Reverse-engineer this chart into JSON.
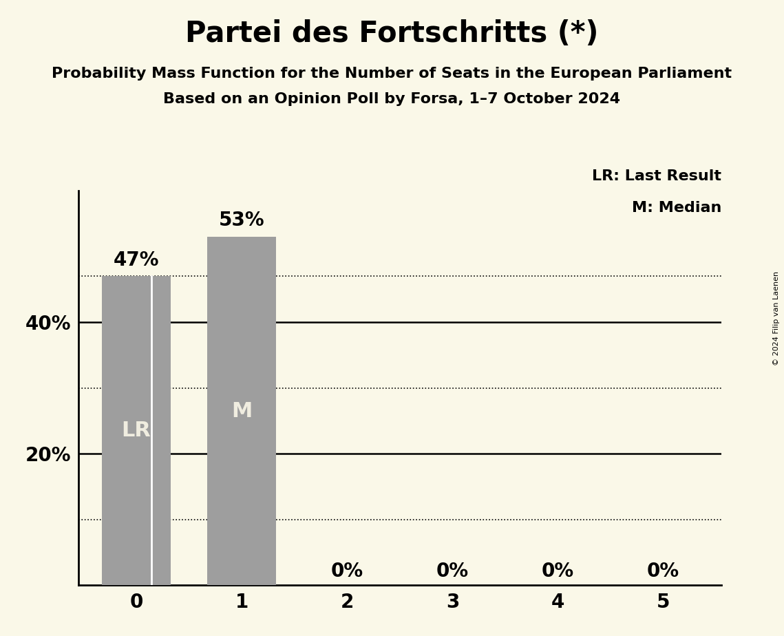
{
  "title": "Partei des Fortschritts (*)",
  "subtitle1": "Probability Mass Function for the Number of Seats in the European Parliament",
  "subtitle2": "Based on an Opinion Poll by Forsa, 1–7 October 2024",
  "copyright": "© 2024 Filip van Laenen",
  "categories": [
    0,
    1,
    2,
    3,
    4,
    5
  ],
  "values": [
    0.47,
    0.53,
    0.0,
    0.0,
    0.0,
    0.0
  ],
  "bar_color": "#9e9e9e",
  "bar_labels": [
    "LR",
    "M",
    "",
    "",
    "",
    ""
  ],
  "bar_label_color": "#f0ede0",
  "value_labels": [
    "47%",
    "53%",
    "0%",
    "0%",
    "0%",
    "0%"
  ],
  "lr_bar_index": 0,
  "median_bar_index": 1,
  "dotted_line_y": 0.47,
  "background_color": "#faf8e8",
  "ylim": [
    0,
    0.6
  ],
  "solid_yticks": [
    0.2,
    0.4
  ],
  "dotted_yticks": [
    0.1,
    0.3,
    0.47
  ],
  "legend_text1": "LR: Last Result",
  "legend_text2": "M: Median",
  "title_fontsize": 30,
  "subtitle_fontsize": 16,
  "tick_fontsize": 20,
  "bar_label_fontsize": 22,
  "value_label_fontsize": 20,
  "legend_fontsize": 16,
  "copyright_fontsize": 8
}
